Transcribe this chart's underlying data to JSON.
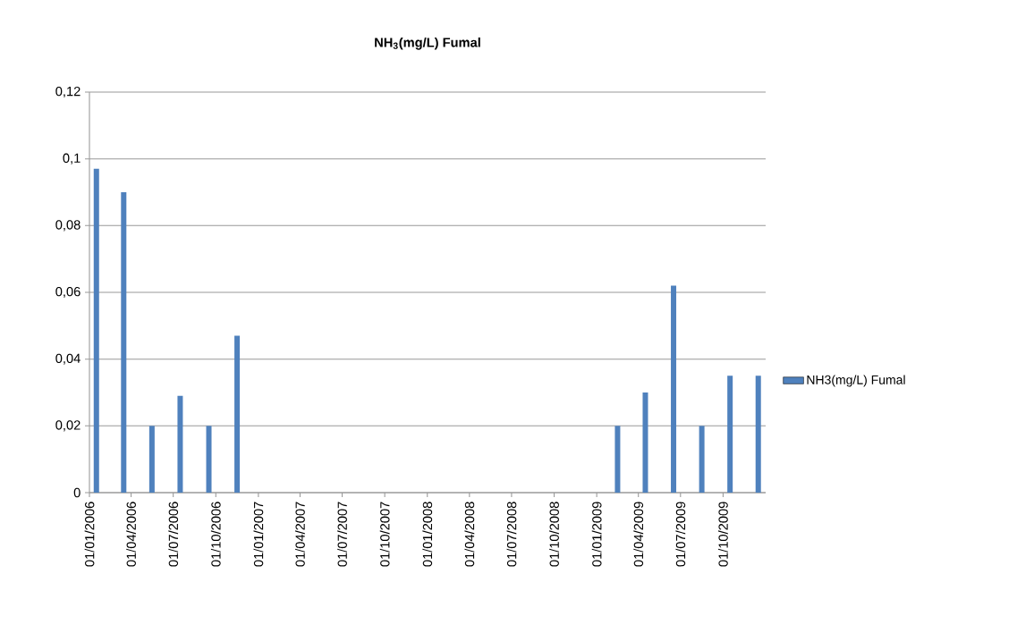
{
  "chart_data": {
    "type": "bar",
    "title": "NH$_{3}$(mg/L) Fumal",
    "x": [
      "2006-01-16",
      "2006-03-16",
      "2006-05-16",
      "2006-07-16",
      "2006-09-16",
      "2006-11-16",
      "2009-02-15",
      "2009-04-16",
      "2009-06-16",
      "2009-08-16",
      "2009-10-16",
      "2009-12-16"
    ],
    "series": [
      {
        "name": "NH3(mg/L) Fumal",
        "color": "#4f81bd",
        "values": [
          0.097,
          0.09,
          0.02,
          0.029,
          0.02,
          0.047,
          0.02,
          0.03,
          0.062,
          0.02,
          0.035,
          0.035
        ]
      }
    ],
    "xlim": [
      "2006-01-01",
      "2010-01-01"
    ],
    "xticks": [
      {
        "value": "2006-01-01",
        "label": "01/01/2006"
      },
      {
        "value": "2006-04-01",
        "label": "01/04/2006"
      },
      {
        "value": "2006-07-01",
        "label": "01/07/2006"
      },
      {
        "value": "2006-10-01",
        "label": "01/10/2006"
      },
      {
        "value": "2007-01-01",
        "label": "01/01/2007"
      },
      {
        "value": "2007-04-01",
        "label": "01/04/2007"
      },
      {
        "value": "2007-07-01",
        "label": "01/07/2007"
      },
      {
        "value": "2007-10-01",
        "label": "01/10/2007"
      },
      {
        "value": "2008-01-01",
        "label": "01/01/2008"
      },
      {
        "value": "2008-04-01",
        "label": "01/04/2008"
      },
      {
        "value": "2008-07-01",
        "label": "01/07/2008"
      },
      {
        "value": "2008-10-01",
        "label": "01/10/2008"
      },
      {
        "value": "2009-01-01",
        "label": "01/01/2009"
      },
      {
        "value": "2009-04-01",
        "label": "01/04/2009"
      },
      {
        "value": "2009-07-01",
        "label": "01/07/2009"
      },
      {
        "value": "2009-10-01",
        "label": "01/10/2009"
      }
    ],
    "ylim": [
      0,
      0.12
    ],
    "yticks": [
      0,
      {
        "value": 0.02,
        "label": "0,02"
      },
      {
        "value": 0.04,
        "label": "0,04"
      },
      {
        "value": 0.06,
        "label": "0,06"
      },
      {
        "value": 0.08,
        "label": "0,08"
      },
      {
        "value": 0.1,
        "label": "0,1"
      },
      {
        "value": 0.12,
        "label": "0,12"
      }
    ],
    "grid": "y",
    "legend": "right"
  }
}
